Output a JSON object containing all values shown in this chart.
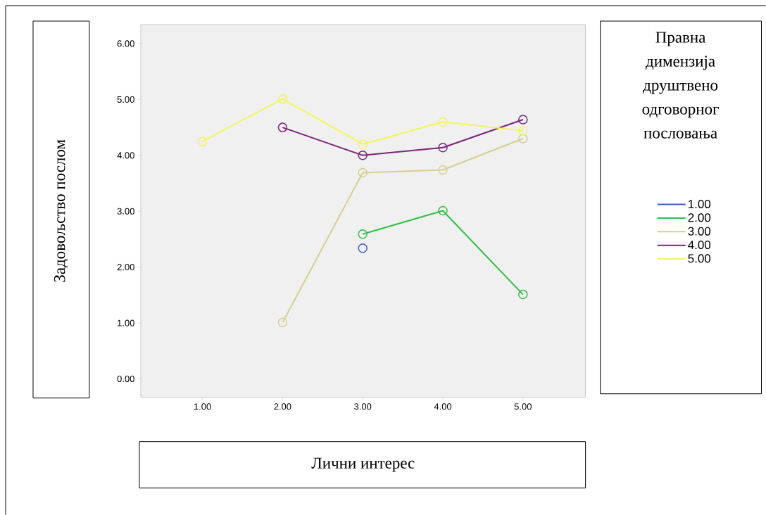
{
  "chart_data": {
    "type": "line",
    "xlabel": "Лични интерес",
    "ylabel": "Задовољство послом",
    "legend_title": "Правна димензија друштвено одговорног пословања",
    "xlim": [
      0.23,
      5.78
    ],
    "ylim": [
      -0.33,
      6.34
    ],
    "xticks": [
      {
        "value": 1,
        "label": "1.00"
      },
      {
        "value": 2,
        "label": "2.00"
      },
      {
        "value": 3,
        "label": "3.00"
      },
      {
        "value": 4,
        "label": "4.00"
      },
      {
        "value": 5,
        "label": "5.00"
      }
    ],
    "yticks": [
      {
        "value": 0,
        "label": "0.00"
      },
      {
        "value": 1,
        "label": "1.00"
      },
      {
        "value": 2,
        "label": "2.00"
      },
      {
        "value": 3,
        "label": "3.00"
      },
      {
        "value": 4,
        "label": "4.00"
      },
      {
        "value": 5,
        "label": "5.00"
      },
      {
        "value": 6,
        "label": "6.00"
      }
    ],
    "marker": "circle",
    "grid": false,
    "legend": "right",
    "series": [
      {
        "name": "1.00",
        "color": "#3e5bbf",
        "x": [
          3
        ],
        "values": [
          2.34
        ]
      },
      {
        "name": "2.00",
        "color": "#2fbf45",
        "x": [
          3,
          4,
          5
        ],
        "values": [
          2.59,
          3.01,
          1.51
        ]
      },
      {
        "name": "3.00",
        "color": "#d6cf8f",
        "x": [
          2,
          3,
          4,
          5
        ],
        "values": [
          1.01,
          3.69,
          3.74,
          4.3
        ]
      },
      {
        "name": "4.00",
        "color": "#7b237b",
        "x": [
          2,
          3,
          4,
          5
        ],
        "values": [
          4.5,
          4.0,
          4.14,
          4.64
        ]
      },
      {
        "name": "5.00",
        "color": "#f5f35a",
        "x": [
          1,
          2,
          3,
          4,
          5
        ],
        "values": [
          4.25,
          5.01,
          4.2,
          4.6,
          4.44
        ]
      }
    ]
  }
}
